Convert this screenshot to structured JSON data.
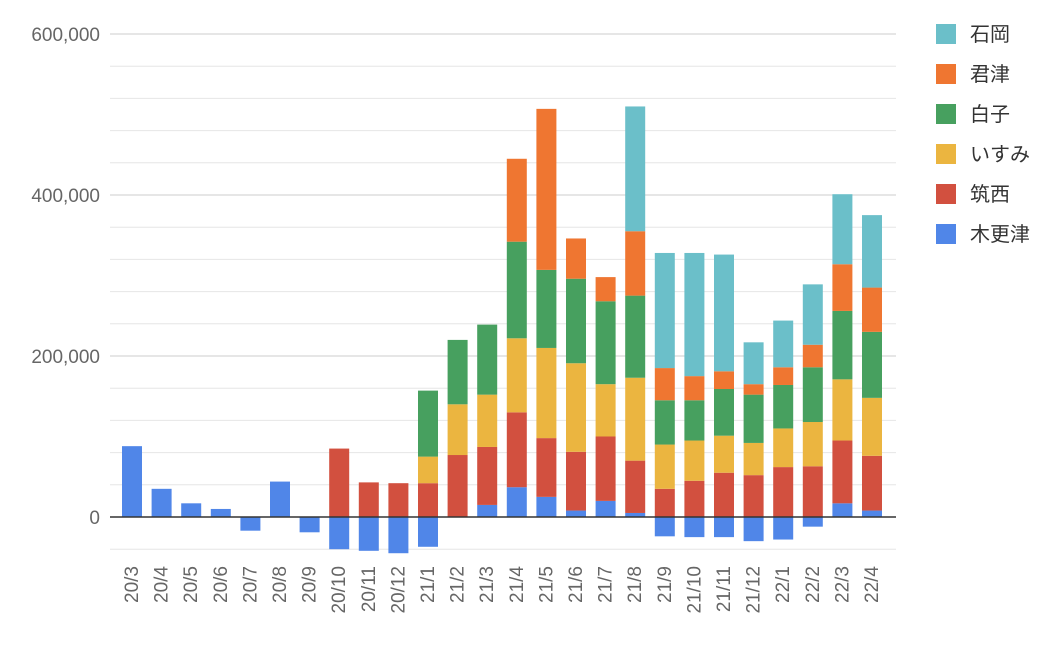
{
  "chart_data": {
    "type": "bar",
    "stacked": true,
    "title": "",
    "xlabel": "",
    "ylabel": "",
    "ylim": [
      -50000,
      600000
    ],
    "yticks": [
      0,
      200000,
      400000,
      600000
    ],
    "ytick_labels": [
      "0",
      "200,000",
      "400,000",
      "600,000"
    ],
    "grid": true,
    "legend_position": "right",
    "categories": [
      "20/3",
      "20/4",
      "20/5",
      "20/6",
      "20/7",
      "20/8",
      "20/9",
      "20/10",
      "20/11",
      "20/12",
      "21/1",
      "21/2",
      "21/3",
      "21/4",
      "21/5",
      "21/6",
      "21/7",
      "21/8",
      "21/9",
      "21/10",
      "21/11",
      "21/12",
      "22/1",
      "22/2",
      "22/3",
      "22/4"
    ],
    "series": [
      {
        "name": "木更津",
        "color": "#5086e8",
        "values": [
          88000,
          35000,
          17000,
          10000,
          -17000,
          44000,
          -19000,
          -40000,
          -42000,
          -45000,
          -37000,
          0,
          15000,
          37000,
          25000,
          8000,
          20000,
          5000,
          -24000,
          -25000,
          -25000,
          -30000,
          -28000,
          -12000,
          17000,
          8000
        ]
      },
      {
        "name": "筑西",
        "color": "#d2503f",
        "values": [
          0,
          0,
          0,
          0,
          0,
          0,
          0,
          85000,
          43000,
          42000,
          42000,
          77000,
          72000,
          93000,
          73000,
          73000,
          80000,
          65000,
          35000,
          45000,
          55000,
          52000,
          62000,
          63000,
          78000,
          68000
        ]
      },
      {
        "name": "いすみ",
        "color": "#ebb540",
        "values": [
          0,
          0,
          0,
          0,
          0,
          0,
          0,
          0,
          0,
          0,
          33000,
          63000,
          65000,
          92000,
          112000,
          110000,
          65000,
          103000,
          55000,
          50000,
          46000,
          40000,
          48000,
          55000,
          76000,
          72000
        ]
      },
      {
        "name": "白子",
        "color": "#47a05f",
        "values": [
          0,
          0,
          0,
          0,
          0,
          0,
          0,
          0,
          0,
          0,
          82000,
          80000,
          87000,
          120000,
          97000,
          105000,
          103000,
          102000,
          55000,
          50000,
          58000,
          60000,
          54000,
          68000,
          85000,
          82000
        ]
      },
      {
        "name": "君津",
        "color": "#ef7631",
        "values": [
          0,
          0,
          0,
          0,
          0,
          0,
          0,
          0,
          0,
          0,
          0,
          0,
          0,
          103000,
          200000,
          50000,
          30000,
          80000,
          40000,
          30000,
          22000,
          13000,
          22000,
          28000,
          58000,
          55000
        ]
      },
      {
        "name": "石岡",
        "color": "#6bbfc9",
        "values": [
          0,
          0,
          0,
          0,
          0,
          0,
          0,
          0,
          0,
          0,
          0,
          0,
          0,
          0,
          0,
          0,
          0,
          155000,
          143000,
          153000,
          145000,
          52000,
          58000,
          75000,
          87000,
          90000
        ]
      }
    ]
  }
}
